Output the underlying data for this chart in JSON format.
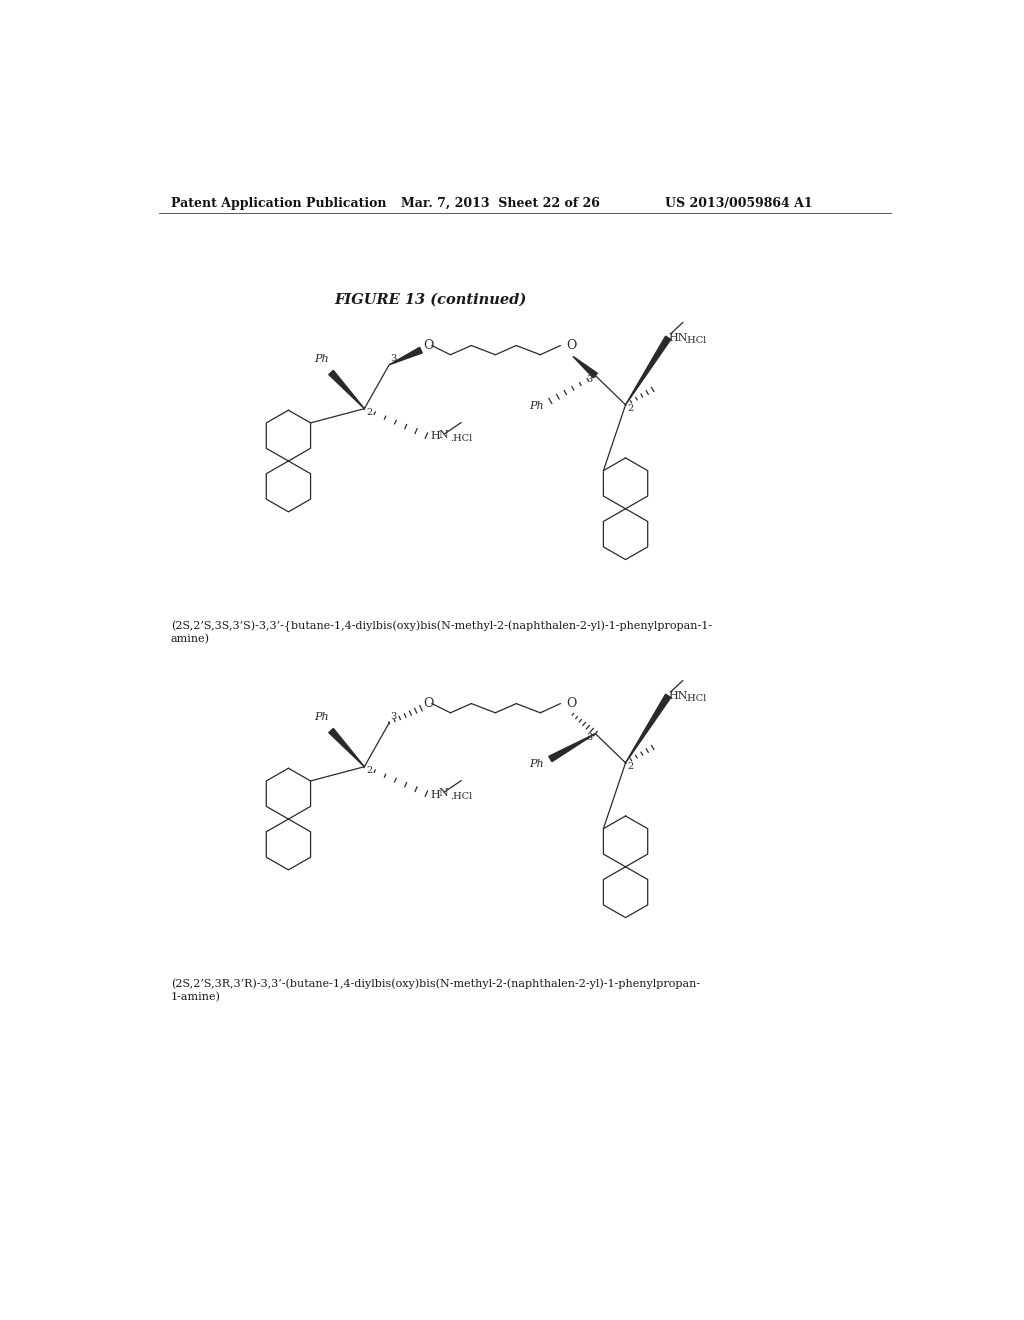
{
  "background_color": "#ffffff",
  "header_left": "Patent Application Publication",
  "header_center": "Mar. 7, 2013  Sheet 22 of 26",
  "header_right": "US 2013/0059864 A1",
  "figure_title": "FIGURE 13 (continued)",
  "compound1_name": "(2S,2’S,3S,3’S)-3,3’-{butane-1,4-diylbis(oxy)bis(N-methyl-2-(naphthalen-2-yl)-1-phenylpropan-1-\namine)",
  "compound2_name": "(2S,2’S,3R,3’R)-3,3’-(butane-1,4-diylbis(oxy)bis(N-methyl-2-(naphthalen-2-yl)-1-phenylpropan-\n1-amine)",
  "gray": "#555555",
  "dark": "#2a2a2a"
}
